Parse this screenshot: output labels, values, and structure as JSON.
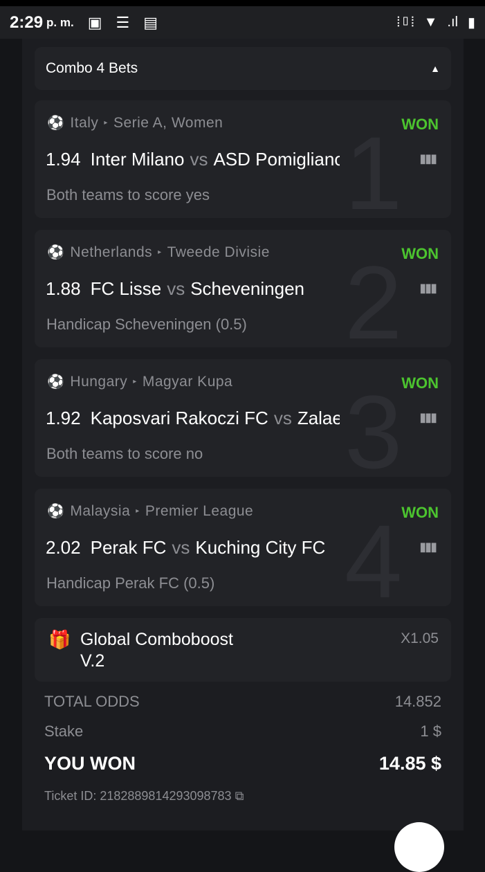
{
  "status_bar": {
    "time": "2:29",
    "ampm": "p. m."
  },
  "header": {
    "title": "Combo 4 Bets"
  },
  "bets": [
    {
      "number": "1",
      "country": "Italy",
      "league": "Serie A, Women",
      "result": "WON",
      "odds": "1.94",
      "home": "Inter Milano",
      "vs": "vs",
      "away": "ASD Pomigliano",
      "pick": "Both teams to score yes"
    },
    {
      "number": "2",
      "country": "Netherlands",
      "league": "Tweede Divisie",
      "result": "WON",
      "odds": "1.88",
      "home": "FC Lisse",
      "vs": "vs",
      "away": "Scheveningen",
      "pick": "Handicap Scheveningen (0.5)"
    },
    {
      "number": "3",
      "country": "Hungary",
      "league": "Magyar Kupa",
      "result": "WON",
      "odds": "1.92",
      "home": "Kaposvari Rakoczi FC",
      "vs": "vs",
      "away": "Zalaegerszeg",
      "pick": "Both teams to score no"
    },
    {
      "number": "4",
      "country": "Malaysia",
      "league": "Premier League",
      "result": "WON",
      "odds": "2.02",
      "home": "Perak FC",
      "vs": "vs",
      "away": "Kuching City FC",
      "pick": "Handicap Perak FC (0.5)"
    }
  ],
  "boost": {
    "name": "Global Comboboost V.2",
    "multiplier": "X1.05"
  },
  "summary": {
    "total_odds_label": "TOTAL ODDS",
    "total_odds": "14.852",
    "stake_label": "Stake",
    "stake": "1 $",
    "won_label": "YOU WON",
    "won": "14.85 $",
    "ticket": "Ticket ID: 2182889814293098783"
  },
  "colors": {
    "won": "#4cc42f",
    "card": "#222327",
    "panel": "#1c1d21"
  }
}
